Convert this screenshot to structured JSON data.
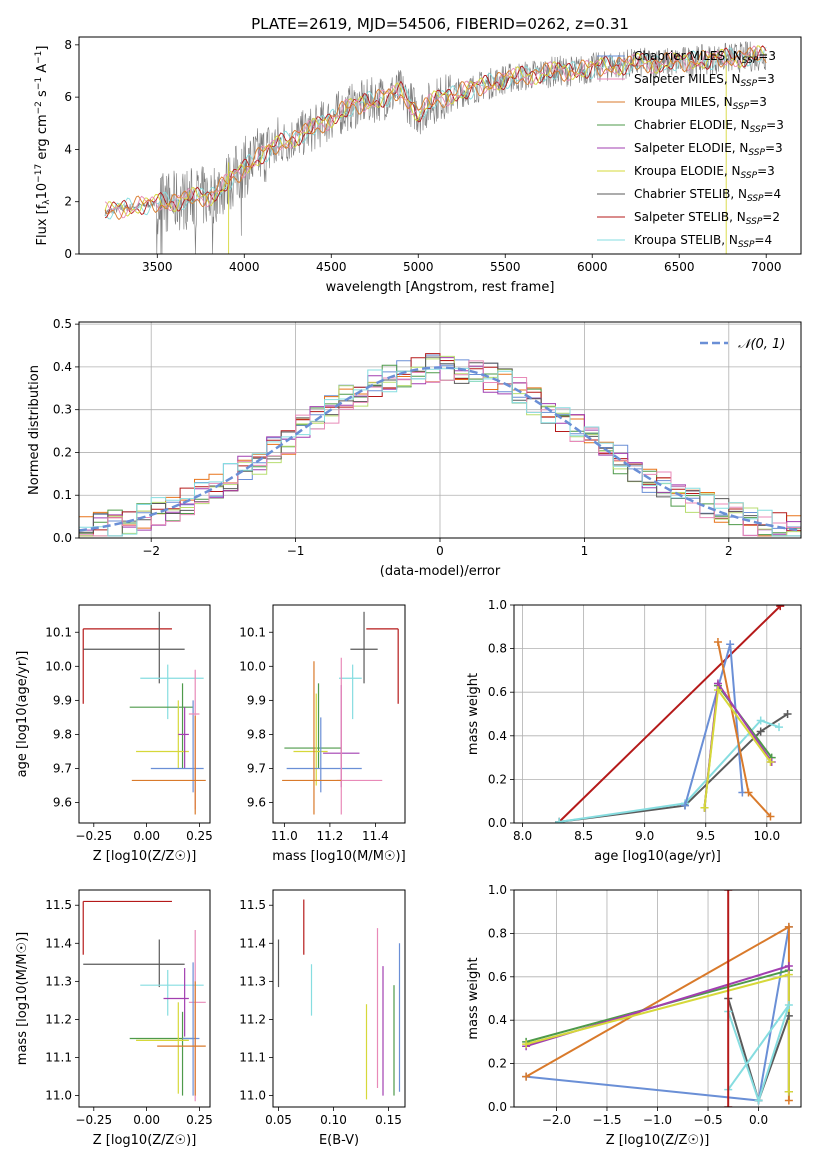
{
  "figure_title": "PLATE=2619, MJD=54506, FIBERID=0262, z=0.31",
  "colors": {
    "grid": "#b0b0b0",
    "chabrier_miles": "#6a8fd6",
    "salpeter_miles": "#e88ab8",
    "kroupa_miles": "#d97a2b",
    "chabrier_elodie": "#4e9a4a",
    "salpeter_elodie": "#a23fb0",
    "kroupa_elodie": "#d6d83a",
    "chabrier_stelib": "#5a5a5a",
    "salpeter_stelib": "#b51a1a",
    "kroupa_stelib": "#86dde0",
    "hist_extra_orange": "#e8731a",
    "hist_extra_lime": "#b8dd70",
    "spectrum_data": "#7a7a7a"
  },
  "legend_models": [
    {
      "key": "chabrier_miles",
      "label": "Chabrier MILES, N",
      "sub": "SSP",
      "suffix": "=3"
    },
    {
      "key": "salpeter_miles",
      "label": "Salpeter MILES, N",
      "sub": "SSP",
      "suffix": "=3"
    },
    {
      "key": "kroupa_miles",
      "label": "Kroupa MILES, N",
      "sub": "SSP",
      "suffix": "=3"
    },
    {
      "key": "chabrier_elodie",
      "label": "Chabrier ELODIE, N",
      "sub": "SSP",
      "suffix": "=3"
    },
    {
      "key": "salpeter_elodie",
      "label": "Salpeter ELODIE, N",
      "sub": "SSP",
      "suffix": "=3"
    },
    {
      "key": "kroupa_elodie",
      "label": "Kroupa ELODIE, N",
      "sub": "SSP",
      "suffix": "=3"
    },
    {
      "key": "chabrier_stelib",
      "label": "Chabrier STELIB, N",
      "sub": "SSP",
      "suffix": "=4"
    },
    {
      "key": "salpeter_stelib",
      "label": "Salpeter STELIB, N",
      "sub": "SSP",
      "suffix": "=2"
    },
    {
      "key": "kroupa_stelib",
      "label": "Kroupa STELIB, N",
      "sub": "SSP",
      "suffix": "=4"
    }
  ],
  "chart_data": [
    {
      "id": "spectrum",
      "type": "line",
      "xlabel": "wavelength [Angstrom, rest frame]",
      "ylabel": "Flux [f",
      "ylabel_parts": [
        "Flux [f",
        "λ",
        "10",
        "−17",
        " erg cm",
        "−2",
        " s",
        "−1",
        " A",
        "−1",
        "]"
      ],
      "xlim": [
        3050,
        7200
      ],
      "ylim": [
        0,
        8.3
      ],
      "xticks": [
        3500,
        4000,
        4500,
        5000,
        5500,
        6000,
        6500,
        7000
      ],
      "yticks": [
        0,
        2,
        4,
        6,
        8
      ],
      "continuum": {
        "x": [
          3200,
          3300,
          3400,
          3500,
          3600,
          3700,
          3800,
          3900,
          4000,
          4100,
          4200,
          4300,
          4400,
          4500,
          4600,
          4700,
          4800,
          4900,
          5000,
          5100,
          5200,
          5300,
          5400,
          5500,
          5600,
          5700,
          5800,
          5900,
          6000,
          6100,
          6200,
          6300,
          6400,
          6500,
          6600,
          6700,
          6800,
          6900,
          7000
        ],
        "y": [
          1.6,
          1.75,
          1.85,
          1.95,
          2.0,
          2.15,
          2.2,
          2.7,
          3.3,
          3.8,
          4.2,
          4.5,
          4.8,
          5.2,
          5.6,
          5.8,
          6.0,
          6.2,
          5.4,
          5.9,
          6.1,
          6.3,
          6.5,
          6.7,
          6.8,
          6.9,
          7.0,
          7.0,
          7.1,
          7.2,
          7.25,
          7.3,
          7.3,
          7.35,
          7.4,
          7.45,
          7.5,
          7.55,
          7.6
        ]
      }
    },
    {
      "id": "residuals",
      "type": "histogram",
      "xlabel": "(data-model)/error",
      "ylabel": "Normed distribution",
      "xlim": [
        -2.5,
        2.5
      ],
      "ylim": [
        0,
        0.505
      ],
      "xticks": [
        -2,
        -1,
        0,
        1,
        2
      ],
      "yticks": [
        0.0,
        0.1,
        0.2,
        0.3,
        0.4,
        0.5
      ],
      "legend": "N(0,1)",
      "gaussian": {
        "mu": 0,
        "sigma": 1
      }
    },
    {
      "id": "age_vs_Z",
      "type": "errorbar",
      "xlabel": "Z [log10(Z/Z☉)]",
      "ylabel": "age [log10(age/yr)]",
      "xlim": [
        -0.32,
        0.3
      ],
      "ylim": [
        9.54,
        10.18
      ],
      "xticks": [
        -0.25,
        0.0,
        0.25
      ],
      "yticks": [
        9.6,
        9.7,
        9.8,
        9.9,
        10.0,
        10.1
      ],
      "points": [
        {
          "key": "salpeter_stelib",
          "x": -0.3,
          "y": 10.11,
          "xerr": [
            0,
            0.42
          ],
          "yerr": [
            0.22,
            0
          ]
        },
        {
          "key": "chabrier_stelib",
          "x": 0.06,
          "y": 10.05,
          "xerr": [
            0.36,
            0.12
          ],
          "yerr": [
            0.1,
            0.11
          ]
        },
        {
          "key": "kroupa_stelib",
          "x": 0.1,
          "y": 9.965,
          "xerr": [
            0.13,
            0.17
          ],
          "yerr": [
            0.12,
            0.04
          ]
        },
        {
          "key": "chabrier_elodie",
          "x": 0.17,
          "y": 9.88,
          "xerr": [
            0.25,
            0.05
          ],
          "yerr": [
            0.18,
            0.07
          ]
        },
        {
          "key": "kroupa_elodie",
          "x": 0.15,
          "y": 9.75,
          "xerr": [
            0.2,
            0.05
          ],
          "yerr": [
            0.05,
            0.15
          ]
        },
        {
          "key": "salpeter_elodie",
          "x": 0.18,
          "y": 9.8,
          "xerr": [
            0.03,
            0.02
          ],
          "yerr": [
            0.1,
            0.08
          ]
        },
        {
          "key": "chabrier_miles",
          "x": 0.22,
          "y": 9.7,
          "xerr": [
            0.2,
            0.05
          ],
          "yerr": [
            0.07,
            0.2
          ]
        },
        {
          "key": "salpeter_miles",
          "x": 0.23,
          "y": 9.86,
          "xerr": [
            0.03,
            0.02
          ],
          "yerr": [
            0.28,
            0.13
          ]
        },
        {
          "key": "kroupa_miles",
          "x": 0.23,
          "y": 9.665,
          "xerr": [
            0.3,
            0.05
          ],
          "yerr": [
            0.1,
            0.19
          ]
        }
      ]
    },
    {
      "id": "age_vs_mass",
      "type": "errorbar",
      "xlabel": "mass [log10(M/M☉)]",
      "ylabel": "",
      "xlim": [
        10.95,
        11.53
      ],
      "ylim": [
        9.54,
        10.18
      ],
      "xticks": [
        11.0,
        11.2,
        11.4
      ],
      "yticks": [
        9.6,
        9.7,
        9.8,
        9.9,
        10.0,
        10.1
      ],
      "points": [
        {
          "key": "salpeter_stelib",
          "x": 11.5,
          "y": 10.11,
          "xerr": [
            0.14,
            0
          ],
          "yerr": [
            0.22,
            0
          ]
        },
        {
          "key": "chabrier_stelib",
          "x": 11.35,
          "y": 10.05,
          "xerr": [
            0.06,
            0.06
          ],
          "yerr": [
            0.1,
            0.11
          ]
        },
        {
          "key": "kroupa_stelib",
          "x": 11.3,
          "y": 9.965,
          "xerr": [
            0.06,
            0.04
          ],
          "yerr": [
            0.12,
            0.04
          ]
        },
        {
          "key": "chabrier_elodie",
          "x": 11.15,
          "y": 9.76,
          "xerr": [
            0.15,
            0.1
          ],
          "yerr": [
            0.06,
            0.19
          ]
        },
        {
          "key": "kroupa_elodie",
          "x": 11.14,
          "y": 9.75,
          "xerr": [
            0.1,
            0.05
          ],
          "yerr": [
            0.1,
            0.17
          ]
        },
        {
          "key": "salpeter_elodie",
          "x": 11.25,
          "y": 9.745,
          "xerr": [
            0.08,
            0.08
          ],
          "yerr": [
            0.1,
            0.2
          ]
        },
        {
          "key": "chabrier_miles",
          "x": 11.16,
          "y": 9.7,
          "xerr": [
            0.15,
            0.18
          ],
          "yerr": [
            0.07,
            0.15
          ]
        },
        {
          "key": "salpeter_miles",
          "x": 11.25,
          "y": 9.665,
          "xerr": [
            0.02,
            0.18
          ],
          "yerr": [
            0.1,
            0.36
          ]
        },
        {
          "key": "kroupa_miles",
          "x": 11.13,
          "y": 9.665,
          "xerr": [
            0.14,
            0.12
          ],
          "yerr": [
            0.1,
            0.35
          ]
        }
      ]
    },
    {
      "id": "massweight_vs_age",
      "type": "line",
      "xlabel": "age [log10(age/yr)]",
      "ylabel": "mass weight",
      "xlim": [
        7.93,
        10.28
      ],
      "ylim": [
        0,
        1.0
      ],
      "xticks": [
        8.0,
        8.5,
        9.0,
        9.5,
        10.0
      ],
      "yticks": [
        0.0,
        0.2,
        0.4,
        0.6,
        0.8,
        1.0
      ],
      "series": [
        {
          "key": "salpeter_stelib",
          "x": [
            8.3,
            10.11
          ],
          "y": [
            0.005,
            0.995
          ]
        },
        {
          "key": "chabrier_stelib",
          "x": [
            8.3,
            9.33,
            9.95,
            10.17
          ],
          "y": [
            0.005,
            0.08,
            0.42,
            0.5
          ]
        },
        {
          "key": "kroupa_stelib",
          "x": [
            8.3,
            9.33,
            9.95,
            10.1
          ],
          "y": [
            0.005,
            0.09,
            0.47,
            0.44
          ]
        },
        {
          "key": "chabrier_miles",
          "x": [
            9.33,
            9.7,
            9.8
          ],
          "y": [
            0.08,
            0.82,
            0.14
          ]
        },
        {
          "key": "kroupa_miles",
          "x": [
            9.6,
            9.85,
            10.03
          ],
          "y": [
            0.83,
            0.14,
            0.03
          ]
        },
        {
          "key": "chabrier_elodie",
          "x": [
            9.49,
            9.6,
            10.04
          ],
          "y": [
            0.07,
            0.63,
            0.3
          ]
        },
        {
          "key": "salpeter_elodie",
          "x": [
            9.49,
            9.6,
            10.04
          ],
          "y": [
            0.07,
            0.64,
            0.28
          ]
        },
        {
          "key": "kroupa_elodie",
          "x": [
            9.49,
            9.6,
            10.03
          ],
          "y": [
            0.07,
            0.61,
            0.28
          ]
        }
      ]
    },
    {
      "id": "mass_vs_Z",
      "type": "errorbar",
      "xlabel": "Z [log10(Z/Z☉)]",
      "ylabel": "mass [log10(M/M☉)]",
      "xlim": [
        -0.32,
        0.3
      ],
      "ylim": [
        10.97,
        11.54
      ],
      "xticks": [
        -0.25,
        0.0,
        0.25
      ],
      "yticks": [
        11.0,
        11.1,
        11.2,
        11.3,
        11.4,
        11.5
      ],
      "points": [
        {
          "key": "salpeter_stelib",
          "x": -0.3,
          "y": 11.51,
          "xerr": [
            0,
            0.42
          ],
          "yerr": [
            0.14,
            0
          ]
        },
        {
          "key": "chabrier_stelib",
          "x": 0.06,
          "y": 11.345,
          "xerr": [
            0.36,
            0.12
          ],
          "yerr": [
            0.06,
            0.065
          ]
        },
        {
          "key": "kroupa_stelib",
          "x": 0.1,
          "y": 11.29,
          "xerr": [
            0.13,
            0.17
          ],
          "yerr": [
            0.08,
            0.04
          ]
        },
        {
          "key": "salpeter_elodie",
          "x": 0.18,
          "y": 11.255,
          "xerr": [
            0.1,
            0.02
          ],
          "yerr": [
            0.1,
            0.08
          ]
        },
        {
          "key": "salpeter_miles",
          "x": 0.23,
          "y": 11.245,
          "xerr": [
            0.03,
            0.05
          ],
          "yerr": [
            0.26,
            0.19
          ]
        },
        {
          "key": "chabrier_elodie",
          "x": 0.17,
          "y": 11.15,
          "xerr": [
            0.25,
            0.05
          ],
          "yerr": [
            0.15,
            0.07
          ]
        },
        {
          "key": "kroupa_elodie",
          "x": 0.15,
          "y": 11.145,
          "xerr": [
            0.2,
            0.05
          ],
          "yerr": [
            0.14,
            0.1
          ]
        },
        {
          "key": "chabrier_miles",
          "x": 0.22,
          "y": 11.15,
          "xerr": [
            0.05,
            0.03
          ],
          "yerr": [
            0.15,
            0.2
          ]
        },
        {
          "key": "kroupa_miles",
          "x": 0.23,
          "y": 11.13,
          "xerr": [
            0.18,
            0.05
          ],
          "yerr": [
            0.13,
            0.17
          ]
        }
      ]
    },
    {
      "id": "mass_vs_EBV",
      "type": "errorbar",
      "xlabel": "E(B-V)",
      "ylabel": "",
      "xlim": [
        0.045,
        0.165
      ],
      "ylim": [
        10.97,
        11.54
      ],
      "xticks": [
        0.05,
        0.1,
        0.15
      ],
      "yticks": [
        11.0,
        11.1,
        11.2,
        11.3,
        11.4,
        11.5
      ],
      "points": [
        {
          "key": "chabrier_stelib",
          "x": 0.05,
          "y": 11.345,
          "xerr": [
            0,
            0
          ],
          "yerr": [
            0.06,
            0.065
          ]
        },
        {
          "key": "salpeter_stelib",
          "x": 0.073,
          "y": 11.44,
          "xerr": [
            0,
            0
          ],
          "yerr": [
            0.07,
            0.075
          ]
        },
        {
          "key": "kroupa_stelib",
          "x": 0.08,
          "y": 11.28,
          "xerr": [
            0,
            0
          ],
          "yerr": [
            0.07,
            0.065
          ]
        },
        {
          "key": "kroupa_elodie",
          "x": 0.13,
          "y": 11.1,
          "xerr": [
            0,
            0
          ],
          "yerr": [
            0.11,
            0.14
          ]
        },
        {
          "key": "salpeter_miles",
          "x": 0.14,
          "y": 11.25,
          "xerr": [
            0,
            0
          ],
          "yerr": [
            0.23,
            0.19
          ]
        },
        {
          "key": "salpeter_elodie",
          "x": 0.145,
          "y": 11.2,
          "xerr": [
            0,
            0
          ],
          "yerr": [
            0.2,
            0.14
          ]
        },
        {
          "key": "chabrier_elodie",
          "x": 0.155,
          "y": 11.16,
          "xerr": [
            0,
            0
          ],
          "yerr": [
            0.16,
            0.13
          ]
        },
        {
          "key": "chabrier_miles",
          "x": 0.16,
          "y": 11.2,
          "xerr": [
            0,
            0
          ],
          "yerr": [
            0.19,
            0.2
          ]
        }
      ]
    },
    {
      "id": "massweight_vs_Z",
      "type": "line",
      "xlabel": "Z [log10(Z/Z☉)]",
      "ylabel": "mass weight",
      "xlim": [
        -2.42,
        0.42
      ],
      "ylim": [
        0,
        1.0
      ],
      "xticks": [
        -2.0,
        -1.5,
        -1.0,
        -0.5,
        0.0
      ],
      "yticks": [
        0.0,
        0.2,
        0.4,
        0.6,
        0.8,
        1.0
      ],
      "series": [
        {
          "key": "chabrier_miles",
          "x": [
            -2.3,
            0.0,
            0.3
          ],
          "y": [
            0.14,
            0.03,
            0.83
          ]
        },
        {
          "key": "kroupa_miles",
          "x": [
            -2.3,
            0.3,
            0.3
          ],
          "y": [
            0.14,
            0.83,
            0.03
          ]
        },
        {
          "key": "chabrier_elodie",
          "x": [
            -2.3,
            0.3,
            0.3
          ],
          "y": [
            0.3,
            0.63,
            0.07
          ]
        },
        {
          "key": "salpeter_elodie",
          "x": [
            -2.3,
            0.3,
            0.3
          ],
          "y": [
            0.28,
            0.65,
            0.07
          ]
        },
        {
          "key": "kroupa_elodie",
          "x": [
            -2.3,
            0.3,
            0.3
          ],
          "y": [
            0.29,
            0.61,
            0.07
          ]
        },
        {
          "key": "chabrier_stelib",
          "x": [
            -0.3,
            0.0,
            0.3
          ],
          "y": [
            0.5,
            0.03,
            0.42
          ]
        },
        {
          "key": "kroupa_stelib",
          "x": [
            -0.3,
            0.0,
            0.3,
            -0.3
          ],
          "y": [
            0.44,
            0.03,
            0.47,
            0.08
          ]
        },
        {
          "key": "salpeter_stelib",
          "x": [
            -0.3,
            -0.3
          ],
          "y": [
            0.0,
            1.0
          ]
        }
      ]
    }
  ]
}
